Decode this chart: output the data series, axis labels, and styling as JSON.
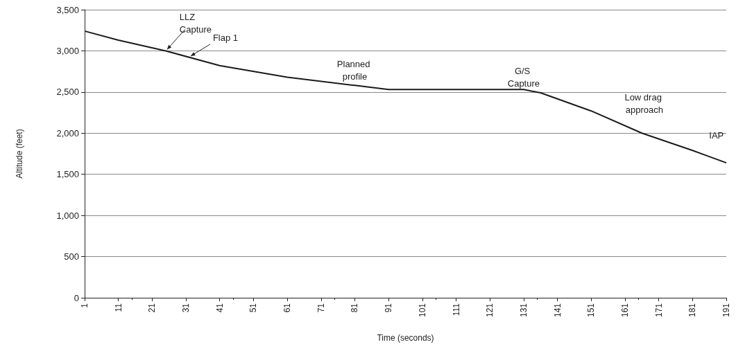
{
  "chart_data": {
    "type": "line",
    "xlabel": "Time (seconds)",
    "ylabel": "Altitude (feet)",
    "x": [
      1,
      11,
      25,
      41,
      61,
      81,
      91,
      111,
      131,
      136,
      151,
      166,
      181,
      191
    ],
    "series": [
      {
        "color": "#1a1a1a",
        "values": [
          3240,
          3130,
          3000,
          2820,
          2680,
          2580,
          2530,
          2530,
          2530,
          2490,
          2270,
          2000,
          1790,
          1640
        ]
      }
    ],
    "xlim": [
      1,
      191
    ],
    "xticks": [
      1,
      11,
      21,
      31,
      41,
      51,
      61,
      71,
      81,
      91,
      101,
      111,
      121,
      131,
      141,
      151,
      161,
      171,
      181,
      191
    ],
    "ylim": [
      0,
      3500
    ],
    "yticks": [
      {
        "value": 0,
        "label": "0"
      },
      {
        "value": 500,
        "label": "500"
      },
      {
        "value": 1000,
        "label": "1,000"
      },
      {
        "value": 1500,
        "label": "1,500"
      },
      {
        "value": 2000,
        "label": "2,000"
      },
      {
        "value": 2500,
        "label": "2,500"
      },
      {
        "value": 3000,
        "label": "3,000"
      },
      {
        "value": 3500,
        "label": "3,500"
      }
    ],
    "grid": "y",
    "marker": "none",
    "line_style": "solid",
    "annotations": [
      {
        "text": "LLZ Capture",
        "x": 25,
        "y": 3000
      },
      {
        "text": "Flap 1",
        "x": 32,
        "y": 2920
      },
      {
        "text": "Planned profile",
        "x": 81,
        "y": 2580
      },
      {
        "text": "G/S Capture",
        "x": 131,
        "y": 2530
      },
      {
        "text": "Low drag approach",
        "x": 161,
        "y": 2090
      },
      {
        "text": "IAP",
        "x": 181,
        "y": 1790
      }
    ]
  }
}
